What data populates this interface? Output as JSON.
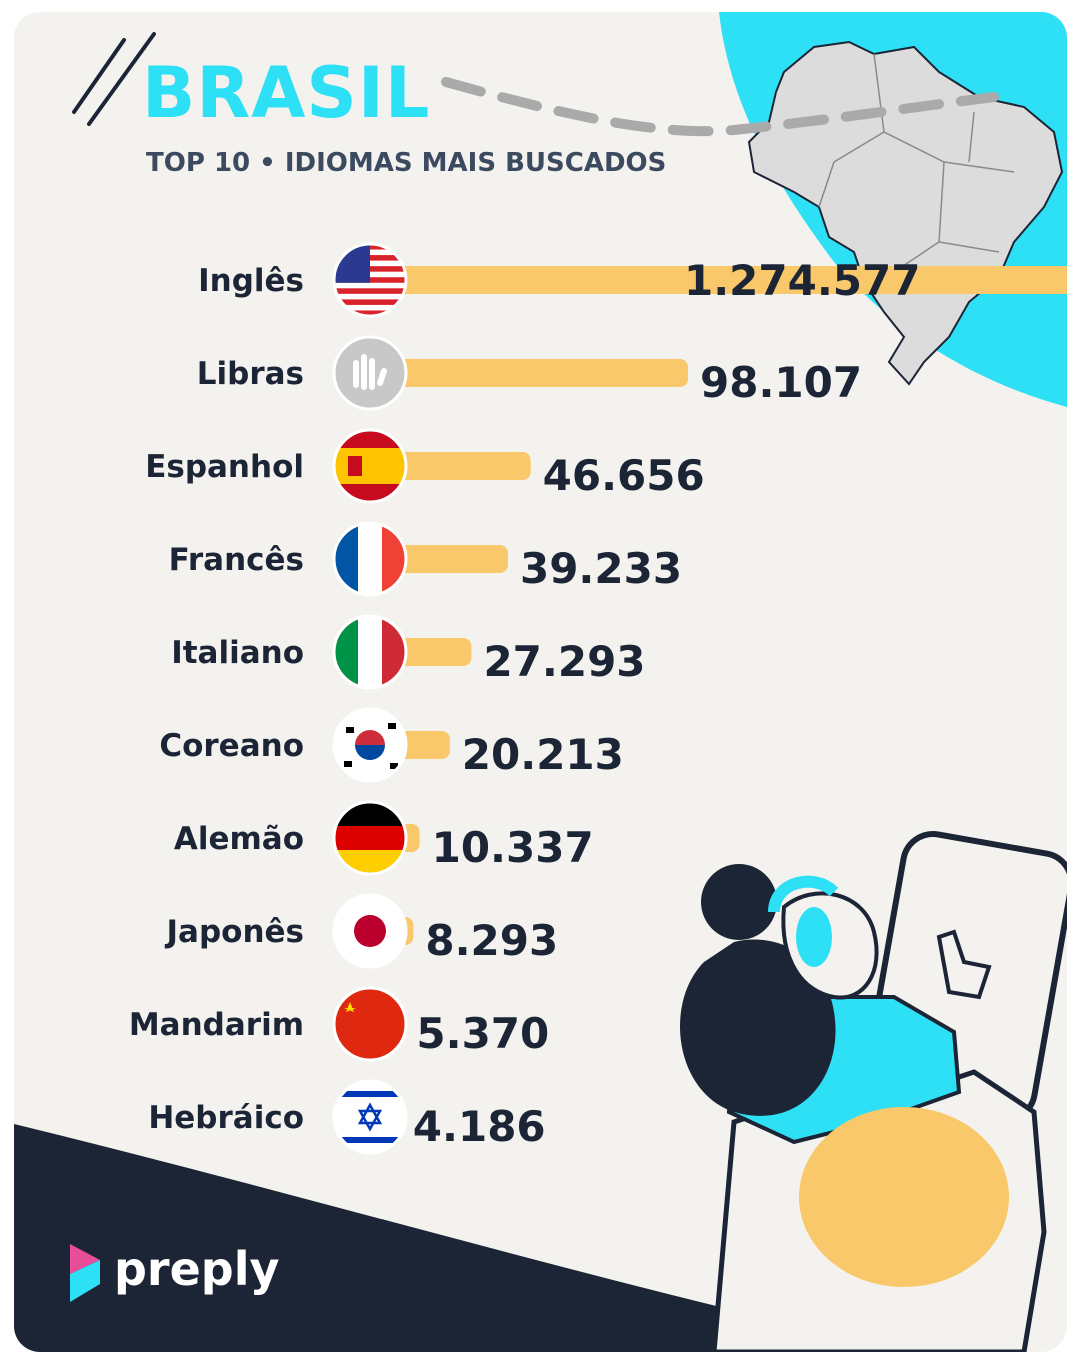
{
  "title": "BRASIL",
  "subtitle": "TOP 10 • IDIOMAS MAIS BUSCADOS",
  "brand": "preply",
  "colors": {
    "accent": "#2ee0f5",
    "bar": "#f8c86a",
    "dark": "#1c2536",
    "background": "#f4f2ef"
  },
  "chart_data": {
    "type": "bar",
    "orientation": "horizontal",
    "categories": [
      "Inglês",
      "Libras",
      "Espanhol",
      "Francês",
      "Italiano",
      "Coreano",
      "Alemão",
      "Japonês",
      "Mandarim",
      "Hebráico"
    ],
    "values": [
      1274577,
      98107,
      46656,
      39233,
      27293,
      20213,
      10337,
      8293,
      5370,
      4186
    ],
    "value_labels": [
      "1.274.577",
      "98.107",
      "46.656",
      "39.233",
      "27.293",
      "20.213",
      "10.337",
      "8.293",
      "5.370",
      "4.186"
    ],
    "icons": [
      "usa-flag-icon",
      "sign-language-icon",
      "spain-flag-icon",
      "france-flag-icon",
      "italy-flag-icon",
      "korea-flag-icon",
      "germany-flag-icon",
      "japan-flag-icon",
      "china-flag-icon",
      "israel-flag-icon"
    ],
    "xlabel": "",
    "ylabel": "",
    "grid": false
  }
}
